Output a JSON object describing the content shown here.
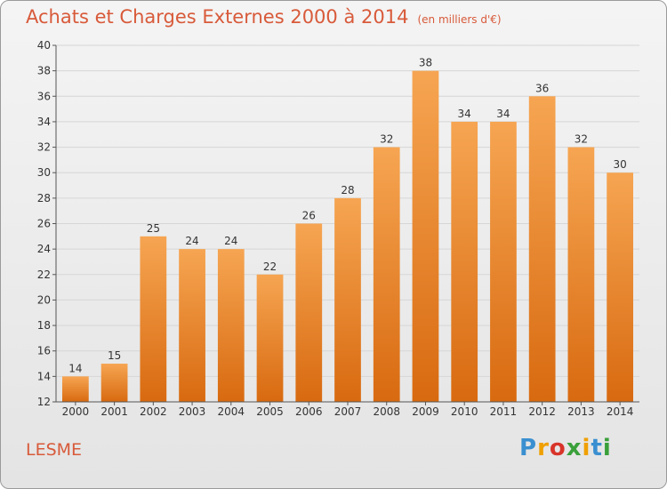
{
  "header": {
    "title": "Achats et Charges Externes 2000 à 2014",
    "unit": "(en milliers d'€)"
  },
  "commune": "LESME",
  "logo": {
    "text": "Proxiti",
    "letter_colors": [
      "#3a8fd0",
      "#f0a000",
      "#d8342a",
      "#3aa03a",
      "#f0a000",
      "#3a8fd0",
      "#3aa03a"
    ]
  },
  "colors": {
    "bar_top": "#f6a552",
    "bar_bottom": "#d86a10",
    "grid": "#d6d6d6",
    "axis": "#555555",
    "title": "#d85a3a"
  },
  "chart_data": {
    "type": "bar",
    "title": "Achats et Charges Externes 2000 à 2014",
    "subtitle": "(en milliers d'€)",
    "xlabel": "",
    "ylabel": "",
    "categories": [
      "2000",
      "2001",
      "2002",
      "2003",
      "2004",
      "2005",
      "2006",
      "2007",
      "2008",
      "2009",
      "2010",
      "2011",
      "2012",
      "2013",
      "2014"
    ],
    "values": [
      14,
      15,
      25,
      24,
      24,
      22,
      26,
      28,
      32,
      38,
      34,
      34,
      36,
      32,
      30
    ],
    "ylim": [
      12,
      40
    ],
    "yticks": [
      12,
      14,
      16,
      18,
      20,
      22,
      24,
      26,
      28,
      30,
      32,
      34,
      36,
      38,
      40
    ],
    "grid": true,
    "data_labels": true
  }
}
